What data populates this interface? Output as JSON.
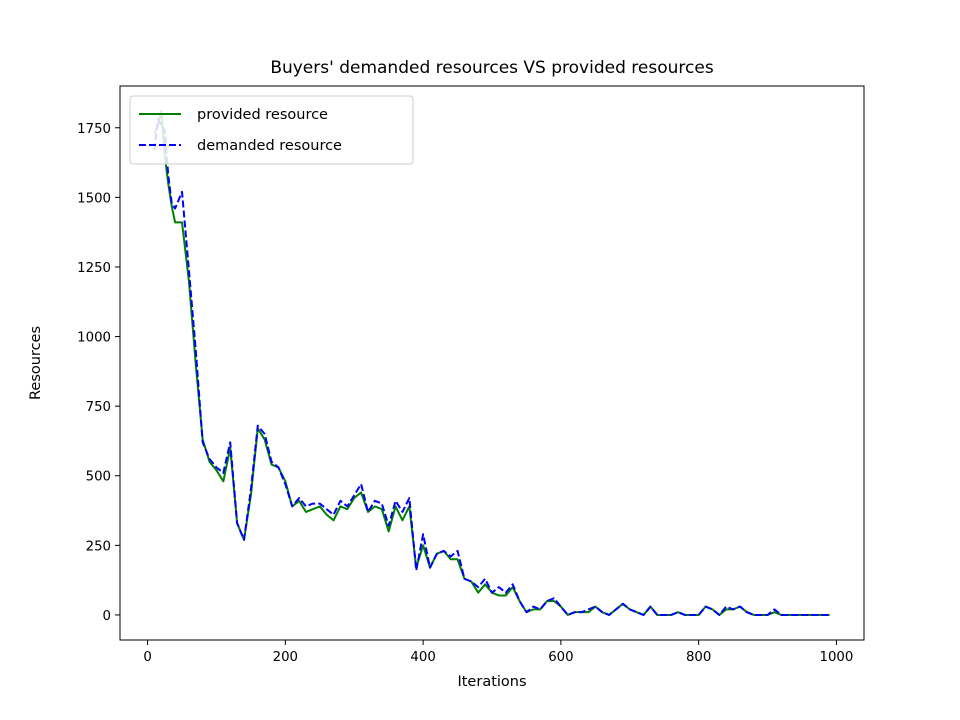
{
  "chart_data": {
    "type": "line",
    "title": "Buyers' demanded resources VS provided resources",
    "xlabel": "Iterations",
    "ylabel": "Resources",
    "xlim": [
      -40,
      1040
    ],
    "ylim": [
      -90,
      1900
    ],
    "xticks": [
      0,
      200,
      400,
      600,
      800,
      1000
    ],
    "yticks": [
      0,
      250,
      500,
      750,
      1000,
      1250,
      1500,
      1750
    ],
    "grid": false,
    "legend_position": "top-left",
    "x": [
      10,
      15,
      20,
      25,
      30,
      35,
      40,
      50,
      60,
      70,
      80,
      90,
      100,
      110,
      120,
      130,
      140,
      150,
      160,
      170,
      180,
      190,
      200,
      210,
      220,
      230,
      240,
      250,
      260,
      270,
      280,
      290,
      300,
      310,
      320,
      330,
      340,
      350,
      360,
      370,
      380,
      390,
      400,
      410,
      420,
      430,
      440,
      450,
      460,
      470,
      480,
      490,
      500,
      510,
      520,
      530,
      540,
      550,
      560,
      570,
      580,
      590,
      600,
      610,
      620,
      630,
      640,
      650,
      660,
      670,
      680,
      690,
      700,
      710,
      720,
      730,
      740,
      750,
      760,
      770,
      780,
      790,
      800,
      810,
      820,
      830,
      840,
      850,
      860,
      870,
      880,
      890,
      900,
      910,
      920,
      930,
      940,
      950,
      960,
      970,
      980,
      990
    ],
    "series": [
      {
        "name": "provided resource",
        "color": "#008000",
        "dash": "solid",
        "values": [
          1730,
          1760,
          1810,
          1650,
          1550,
          1470,
          1410,
          1410,
          1200,
          900,
          630,
          550,
          520,
          480,
          600,
          330,
          270,
          430,
          670,
          630,
          540,
          530,
          480,
          390,
          410,
          370,
          380,
          390,
          360,
          340,
          390,
          380,
          420,
          440,
          370,
          390,
          380,
          300,
          390,
          340,
          390,
          170,
          250,
          170,
          220,
          230,
          200,
          200,
          130,
          120,
          80,
          110,
          80,
          70,
          70,
          100,
          50,
          10,
          20,
          20,
          50,
          50,
          30,
          0,
          10,
          10,
          10,
          30,
          10,
          0,
          20,
          40,
          20,
          10,
          0,
          30,
          0,
          0,
          0,
          10,
          0,
          0,
          0,
          30,
          20,
          0,
          20,
          20,
          30,
          10,
          0,
          0,
          0,
          10,
          0,
          0,
          0,
          0,
          0,
          0,
          0,
          0
        ]
      },
      {
        "name": "demanded resource",
        "color": "#0000ff",
        "dash": "dashed",
        "values": [
          1670,
          1780,
          1760,
          1740,
          1580,
          1480,
          1460,
          1520,
          1240,
          950,
          620,
          560,
          530,
          510,
          620,
          330,
          270,
          450,
          680,
          650,
          550,
          530,
          470,
          390,
          420,
          390,
          400,
          400,
          380,
          360,
          410,
          390,
          430,
          470,
          370,
          410,
          400,
          320,
          410,
          370,
          420,
          160,
          290,
          170,
          220,
          230,
          210,
          230,
          130,
          120,
          100,
          130,
          80,
          100,
          80,
          110,
          50,
          10,
          30,
          20,
          50,
          60,
          30,
          0,
          10,
          10,
          20,
          30,
          10,
          0,
          20,
          40,
          20,
          10,
          0,
          30,
          0,
          0,
          0,
          10,
          0,
          0,
          0,
          30,
          20,
          0,
          30,
          20,
          30,
          10,
          0,
          0,
          0,
          20,
          0,
          0,
          0,
          0,
          0,
          0,
          0,
          0
        ]
      }
    ]
  }
}
